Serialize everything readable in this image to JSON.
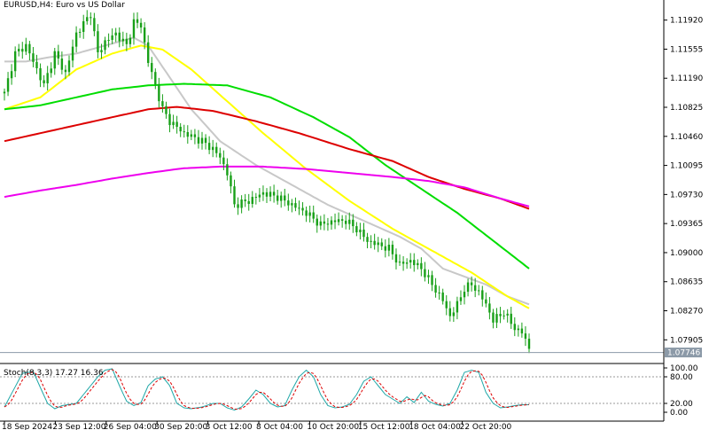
{
  "window": {
    "title": "EURUSD,H4:  Euro vs US Dollar"
  },
  "colors": {
    "background": "#ffffff",
    "candle": "#18a018",
    "ma_gray": "#c8c8c8",
    "ma_yellow": "#ffff00",
    "ma_green": "#00dd00",
    "ma_red": "#dd0000",
    "ma_magenta": "#ee00ee",
    "stoch_main": "#20a8a8",
    "stoch_signal": "#dd0000",
    "current_price_line": "#8c9aa8"
  },
  "chart_data": {
    "type": "candlestick",
    "symbol": "EURUSD",
    "timeframe": "H4",
    "y_ticks": [
      "1.11920",
      "1.11555",
      "1.11190",
      "1.10825",
      "1.10460",
      "1.10095",
      "1.09730",
      "1.09365",
      "1.09000",
      "1.08635",
      "1.08270",
      "1.07905"
    ],
    "ylim": [
      1.0763,
      1.1215
    ],
    "current_price": "1.07746",
    "x_ticks": [
      "18 Sep 2024",
      "23 Sep 12:00",
      "26 Sep 04:00",
      "30 Sep 20:00",
      "3 Oct 12:00",
      "8 Oct 04:00",
      "10 Oct 20:00",
      "15 Oct 12:00",
      "18 Oct 04:00",
      "22 Oct 20:00"
    ],
    "close_anchors": [
      [
        0,
        1.11
      ],
      [
        3,
        1.115
      ],
      [
        6,
        1.116
      ],
      [
        8,
        1.114
      ],
      [
        11,
        1.111
      ],
      [
        14,
        1.115
      ],
      [
        17,
        1.1125
      ],
      [
        20,
        1.1175
      ],
      [
        24,
        1.12
      ],
      [
        26,
        1.115
      ],
      [
        28,
        1.1165
      ],
      [
        31,
        1.1175
      ],
      [
        34,
        1.116
      ],
      [
        36,
        1.119
      ],
      [
        38,
        1.1185
      ],
      [
        40,
        1.114
      ],
      [
        42,
        1.111
      ],
      [
        44,
        1.108
      ],
      [
        46,
        1.1065
      ],
      [
        50,
        1.105
      ],
      [
        55,
        1.104
      ],
      [
        58,
        1.103
      ],
      [
        60,
        1.102
      ],
      [
        62,
        1.1
      ],
      [
        64,
        1.096
      ],
      [
        68,
        1.0965
      ],
      [
        72,
        1.0975
      ],
      [
        76,
        1.097
      ],
      [
        80,
        1.096
      ],
      [
        84,
        1.095
      ],
      [
        88,
        1.0935
      ],
      [
        92,
        1.094
      ],
      [
        95,
        1.094
      ],
      [
        98,
        1.093
      ],
      [
        101,
        1.0915
      ],
      [
        104,
        1.091
      ],
      [
        107,
        1.0905
      ],
      [
        110,
        1.0885
      ],
      [
        113,
        1.089
      ],
      [
        116,
        1.088
      ],
      [
        119,
        1.086
      ],
      [
        122,
        1.084
      ],
      [
        124,
        1.082
      ],
      [
        126,
        1.0835
      ],
      [
        128,
        1.0855
      ],
      [
        130,
        1.086
      ],
      [
        132,
        1.085
      ],
      [
        134,
        1.0835
      ],
      [
        136,
        1.0815
      ],
      [
        139,
        1.0825
      ],
      [
        142,
        1.0805
      ],
      [
        144,
        1.08
      ],
      [
        146,
        1.078
      ]
    ],
    "moving_averages": [
      {
        "color_key": "ma_gray",
        "points": [
          [
            0,
            1.114
          ],
          [
            6,
            1.114
          ],
          [
            12,
            1.1145
          ],
          [
            20,
            1.115
          ],
          [
            28,
            1.116
          ],
          [
            36,
            1.117
          ],
          [
            40,
            1.116
          ],
          [
            46,
            1.112
          ],
          [
            52,
            1.108
          ],
          [
            60,
            1.104
          ],
          [
            70,
            1.101
          ],
          [
            80,
            1.0985
          ],
          [
            90,
            1.096
          ],
          [
            100,
            1.094
          ],
          [
            110,
            1.092
          ],
          [
            116,
            1.0905
          ],
          [
            122,
            1.088
          ],
          [
            128,
            1.087
          ],
          [
            134,
            1.086
          ],
          [
            140,
            1.0845
          ],
          [
            146,
            1.0835
          ]
        ]
      },
      {
        "color_key": "ma_yellow",
        "points": [
          [
            0,
            1.108
          ],
          [
            10,
            1.1095
          ],
          [
            20,
            1.113
          ],
          [
            30,
            1.115
          ],
          [
            38,
            1.116
          ],
          [
            44,
            1.1155
          ],
          [
            52,
            1.113
          ],
          [
            62,
            1.109
          ],
          [
            72,
            1.105
          ],
          [
            84,
            1.1005
          ],
          [
            96,
            1.0965
          ],
          [
            108,
            1.093
          ],
          [
            120,
            1.09
          ],
          [
            130,
            1.0875
          ],
          [
            140,
            1.0845
          ],
          [
            146,
            1.083
          ]
        ]
      },
      {
        "color_key": "ma_green",
        "points": [
          [
            0,
            1.108
          ],
          [
            10,
            1.1085
          ],
          [
            20,
            1.1095
          ],
          [
            30,
            1.1105
          ],
          [
            40,
            1.111
          ],
          [
            50,
            1.1112
          ],
          [
            62,
            1.111
          ],
          [
            74,
            1.1095
          ],
          [
            86,
            1.107
          ],
          [
            96,
            1.1045
          ],
          [
            106,
            1.101
          ],
          [
            116,
            1.098
          ],
          [
            126,
            1.095
          ],
          [
            136,
            1.0915
          ],
          [
            146,
            1.088
          ]
        ]
      },
      {
        "color_key": "ma_red",
        "points": [
          [
            0,
            1.104
          ],
          [
            10,
            1.105
          ],
          [
            20,
            1.106
          ],
          [
            30,
            1.107
          ],
          [
            40,
            1.108
          ],
          [
            48,
            1.1083
          ],
          [
            58,
            1.1078
          ],
          [
            70,
            1.1065
          ],
          [
            82,
            1.105
          ],
          [
            96,
            1.103
          ],
          [
            108,
            1.1015
          ],
          [
            118,
            1.0995
          ],
          [
            128,
            1.098
          ],
          [
            138,
            1.0968
          ],
          [
            146,
            1.0955
          ]
        ]
      },
      {
        "color_key": "ma_magenta",
        "points": [
          [
            0,
            1.097
          ],
          [
            10,
            1.0978
          ],
          [
            20,
            1.0985
          ],
          [
            30,
            1.0993
          ],
          [
            40,
            1.1
          ],
          [
            50,
            1.1006
          ],
          [
            60,
            1.1008
          ],
          [
            72,
            1.1008
          ],
          [
            84,
            1.1005
          ],
          [
            96,
            1.1
          ],
          [
            108,
            1.0995
          ],
          [
            118,
            1.099
          ],
          [
            128,
            1.0982
          ],
          [
            138,
            1.0968
          ],
          [
            146,
            1.0958
          ]
        ]
      }
    ],
    "stochastic": {
      "label": "Stoch(8,3,3) 17.27 16.36",
      "y_ticks": [
        "100.00",
        "80.00",
        "20.00",
        "0.00"
      ],
      "levels": [
        20,
        80
      ],
      "main_anchors": [
        [
          0,
          12
        ],
        [
          5,
          88
        ],
        [
          8,
          92
        ],
        [
          12,
          20
        ],
        [
          14,
          8
        ],
        [
          16,
          15
        ],
        [
          20,
          20
        ],
        [
          24,
          60
        ],
        [
          26,
          80
        ],
        [
          28,
          95
        ],
        [
          30,
          98
        ],
        [
          32,
          60
        ],
        [
          34,
          25
        ],
        [
          36,
          15
        ],
        [
          38,
          22
        ],
        [
          40,
          60
        ],
        [
          42,
          75
        ],
        [
          44,
          80
        ],
        [
          46,
          60
        ],
        [
          48,
          20
        ],
        [
          50,
          10
        ],
        [
          52,
          8
        ],
        [
          55,
          12
        ],
        [
          58,
          20
        ],
        [
          60,
          20
        ],
        [
          62,
          10
        ],
        [
          64,
          5
        ],
        [
          66,
          12
        ],
        [
          68,
          30
        ],
        [
          70,
          50
        ],
        [
          72,
          40
        ],
        [
          74,
          20
        ],
        [
          76,
          12
        ],
        [
          78,
          15
        ],
        [
          80,
          50
        ],
        [
          82,
          80
        ],
        [
          84,
          95
        ],
        [
          86,
          80
        ],
        [
          88,
          40
        ],
        [
          90,
          15
        ],
        [
          92,
          10
        ],
        [
          94,
          12
        ],
        [
          96,
          18
        ],
        [
          98,
          40
        ],
        [
          100,
          70
        ],
        [
          102,
          80
        ],
        [
          104,
          60
        ],
        [
          106,
          40
        ],
        [
          108,
          30
        ],
        [
          110,
          20
        ],
        [
          112,
          35
        ],
        [
          114,
          22
        ],
        [
          116,
          45
        ],
        [
          118,
          25
        ],
        [
          120,
          18
        ],
        [
          122,
          14
        ],
        [
          124,
          20
        ],
        [
          126,
          50
        ],
        [
          128,
          90
        ],
        [
          130,
          95
        ],
        [
          132,
          90
        ],
        [
          134,
          45
        ],
        [
          136,
          20
        ],
        [
          138,
          10
        ],
        [
          140,
          12
        ],
        [
          142,
          15
        ],
        [
          144,
          17
        ],
        [
          146,
          17
        ]
      ]
    }
  }
}
